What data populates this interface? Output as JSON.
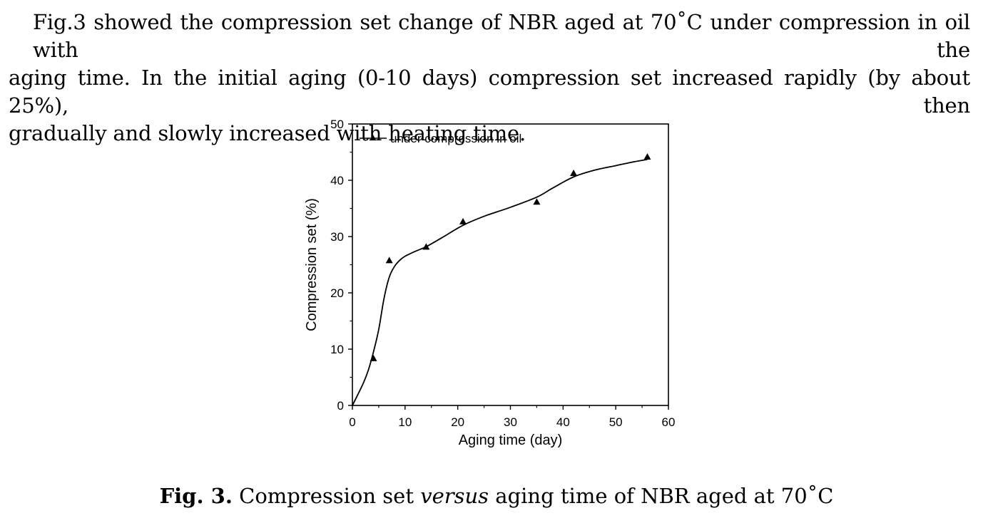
{
  "paragraph": {
    "line1": "Fig.3 showed the compression set change of NBR aged at 70˚C under compression in oil with the",
    "line2": "aging time. In the initial aging (0-10 days) compression set increased rapidly (by about 25%), then",
    "line3": "gradually and slowly increased with heating time."
  },
  "caption": {
    "label": "Fig. 3.",
    "pre": "Compression set",
    "italic": "versus",
    "post": "aging time of NBR aged at 70˚C"
  },
  "chart_data": {
    "type": "line",
    "title": "",
    "xlabel": "Aging time (day)",
    "ylabel": "Compression set (%)",
    "xlim": [
      0,
      60
    ],
    "ylim": [
      0,
      50
    ],
    "xticks": [
      0,
      10,
      20,
      30,
      40,
      50,
      60
    ],
    "yticks": [
      0,
      10,
      20,
      30,
      40,
      50
    ],
    "legend": {
      "label": "under compression in oil",
      "position": "top-left"
    },
    "grid": false,
    "series": [
      {
        "name": "under compression in oil",
        "marker": "triangle",
        "x": [
          4,
          7,
          14,
          21,
          35,
          42,
          56
        ],
        "y": [
          8.3,
          25.7,
          28.1,
          32.6,
          36.1,
          41.2,
          44.1
        ]
      }
    ],
    "fit_curve": {
      "x": [
        0,
        2,
        3,
        4,
        5,
        6,
        7,
        8,
        9,
        10,
        12,
        14,
        17,
        21,
        25,
        30,
        35,
        38,
        42,
        46,
        50,
        53,
        56
      ],
      "y": [
        0,
        3.8,
        6.2,
        9.5,
        13.5,
        19.0,
        22.8,
        24.7,
        25.8,
        26.5,
        27.4,
        28.2,
        29.8,
        32.0,
        33.6,
        35.2,
        37.0,
        38.6,
        40.6,
        41.8,
        42.6,
        43.2,
        43.7
      ]
    },
    "colors": {
      "ink": "#000000"
    }
  }
}
